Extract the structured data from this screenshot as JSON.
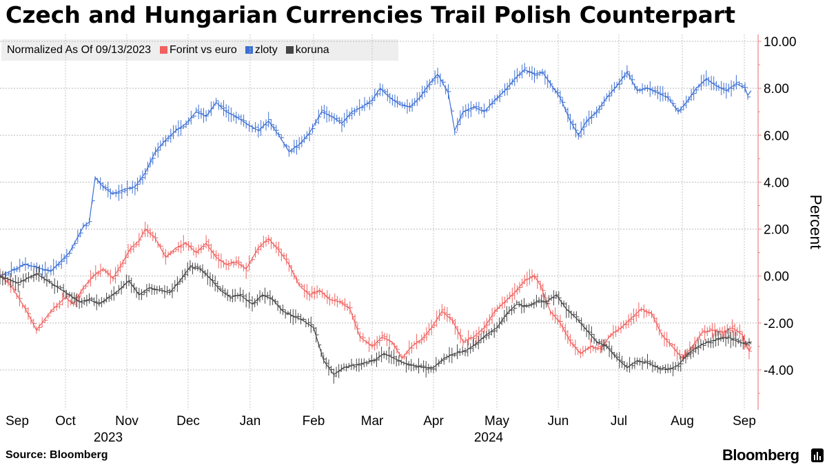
{
  "title": "Czech and Hungarian Currencies Trail Polish Counterpart",
  "legend": {
    "label": "Normalized As Of 09/13/2023",
    "items": [
      {
        "name": "Forint vs euro",
        "color": "#f0605e"
      },
      {
        "name": "zloty",
        "color": "#3c6fd4"
      },
      {
        "name": "koruna",
        "color": "#444444"
      }
    ]
  },
  "source": "Source: Bloomberg",
  "brand": "Bloomberg",
  "chart_data": {
    "type": "line",
    "ylabel": "Percent",
    "ylim": [
      -5.8,
      10.3
    ],
    "yticks": [
      10,
      8,
      6,
      4,
      2,
      0,
      -2,
      -4
    ],
    "ytick_labels": [
      "10.00",
      "8.00",
      "6.00",
      "4.00",
      "2.00",
      "0.00",
      "-2.00",
      "-4.00"
    ],
    "y_axis_position": "right",
    "grid": true,
    "x_months": [
      "Sep",
      "Oct",
      "Nov",
      "Dec",
      "Jan",
      "Feb",
      "Mar",
      "Apr",
      "May",
      "Jun",
      "Jul",
      "Aug",
      "Sep"
    ],
    "x_years": [
      "2023",
      "2024"
    ],
    "x_anchor_dates": [
      "2023-09-13",
      "2023-10-01",
      "2023-11-01",
      "2023-12-01",
      "2024-01-01",
      "2024-02-01",
      "2024-03-01",
      "2024-04-01",
      "2024-05-01",
      "2024-06-01",
      "2024-07-01",
      "2024-08-01",
      "2024-09-01",
      "2024-09-11"
    ],
    "series": [
      {
        "name": "zloty",
        "color": "#3c6fd4",
        "points": [
          [
            "2023-09-13",
            0.0
          ],
          [
            "2023-09-20",
            0.5
          ],
          [
            "2023-09-27",
            0.2
          ],
          [
            "2023-10-03",
            1.0
          ],
          [
            "2023-10-10",
            2.1
          ],
          [
            "2023-10-13",
            2.3
          ],
          [
            "2023-10-16",
            4.2
          ],
          [
            "2023-10-20",
            3.8
          ],
          [
            "2023-10-25",
            3.5
          ],
          [
            "2023-10-31",
            3.7
          ],
          [
            "2023-11-05",
            3.8
          ],
          [
            "2023-11-10",
            4.4
          ],
          [
            "2023-11-15",
            5.3
          ],
          [
            "2023-11-20",
            5.8
          ],
          [
            "2023-11-25",
            6.2
          ],
          [
            "2023-11-30",
            6.5
          ],
          [
            "2023-12-05",
            7.0
          ],
          [
            "2023-12-10",
            6.8
          ],
          [
            "2023-12-15",
            7.4
          ],
          [
            "2023-12-20",
            7.0
          ],
          [
            "2023-12-25",
            6.8
          ],
          [
            "2023-12-30",
            6.5
          ],
          [
            "2024-01-05",
            6.2
          ],
          [
            "2024-01-10",
            6.6
          ],
          [
            "2024-01-15",
            6.0
          ],
          [
            "2024-01-20",
            5.3
          ],
          [
            "2024-01-25",
            5.6
          ],
          [
            "2024-01-30",
            6.1
          ],
          [
            "2024-02-05",
            7.0
          ],
          [
            "2024-02-10",
            6.8
          ],
          [
            "2024-02-15",
            6.5
          ],
          [
            "2024-02-20",
            7.0
          ],
          [
            "2024-02-25",
            7.2
          ],
          [
            "2024-03-01",
            7.5
          ],
          [
            "2024-03-05",
            8.0
          ],
          [
            "2024-03-10",
            7.6
          ],
          [
            "2024-03-15",
            7.3
          ],
          [
            "2024-03-20",
            7.2
          ],
          [
            "2024-03-25",
            7.6
          ],
          [
            "2024-03-30",
            8.2
          ],
          [
            "2024-04-03",
            8.6
          ],
          [
            "2024-04-08",
            7.8
          ],
          [
            "2024-04-11",
            6.2
          ],
          [
            "2024-04-15",
            7.0
          ],
          [
            "2024-04-20",
            7.2
          ],
          [
            "2024-04-25",
            7.0
          ],
          [
            "2024-04-30",
            7.5
          ],
          [
            "2024-05-05",
            7.9
          ],
          [
            "2024-05-10",
            8.4
          ],
          [
            "2024-05-15",
            8.8
          ],
          [
            "2024-05-20",
            8.6
          ],
          [
            "2024-05-24",
            8.7
          ],
          [
            "2024-05-28",
            8.2
          ],
          [
            "2024-06-02",
            7.6
          ],
          [
            "2024-06-07",
            6.6
          ],
          [
            "2024-06-11",
            6.0
          ],
          [
            "2024-06-15",
            6.6
          ],
          [
            "2024-06-20",
            7.0
          ],
          [
            "2024-06-25",
            7.6
          ],
          [
            "2024-06-30",
            8.1
          ],
          [
            "2024-07-05",
            8.7
          ],
          [
            "2024-07-10",
            7.9
          ],
          [
            "2024-07-15",
            8.0
          ],
          [
            "2024-07-20",
            7.8
          ],
          [
            "2024-07-25",
            7.6
          ],
          [
            "2024-07-30",
            7.0
          ],
          [
            "2024-08-03",
            7.4
          ],
          [
            "2024-08-08",
            8.0
          ],
          [
            "2024-08-13",
            8.4
          ],
          [
            "2024-08-18",
            8.1
          ],
          [
            "2024-08-23",
            7.9
          ],
          [
            "2024-08-28",
            8.2
          ],
          [
            "2024-09-02",
            8.0
          ],
          [
            "2024-09-06",
            7.7
          ],
          [
            "2024-09-11",
            7.9
          ]
        ]
      },
      {
        "name": "Forint vs euro",
        "color": "#f0605e",
        "points": [
          [
            "2023-09-13",
            0.0
          ],
          [
            "2023-09-16",
            -0.4
          ],
          [
            "2023-09-20",
            -1.4
          ],
          [
            "2023-09-23",
            -2.3
          ],
          [
            "2023-09-27",
            -1.5
          ],
          [
            "2023-10-01",
            -0.9
          ],
          [
            "2023-10-05",
            -1.2
          ],
          [
            "2023-10-10",
            -0.5
          ],
          [
            "2023-10-15",
            0.0
          ],
          [
            "2023-10-20",
            0.3
          ],
          [
            "2023-10-25",
            -0.1
          ],
          [
            "2023-10-30",
            0.6
          ],
          [
            "2023-11-03",
            1.2
          ],
          [
            "2023-11-07",
            1.5
          ],
          [
            "2023-11-10",
            2.0
          ],
          [
            "2023-11-15",
            1.6
          ],
          [
            "2023-11-20",
            0.8
          ],
          [
            "2023-11-25",
            1.2
          ],
          [
            "2023-11-30",
            1.4
          ],
          [
            "2023-12-05",
            1.0
          ],
          [
            "2023-12-10",
            1.4
          ],
          [
            "2023-12-15",
            0.8
          ],
          [
            "2023-12-20",
            0.5
          ],
          [
            "2023-12-25",
            0.6
          ],
          [
            "2023-12-30",
            0.3
          ],
          [
            "2024-01-05",
            1.2
          ],
          [
            "2024-01-10",
            1.6
          ],
          [
            "2024-01-15",
            1.1
          ],
          [
            "2024-01-20",
            0.5
          ],
          [
            "2024-01-25",
            -0.4
          ],
          [
            "2024-01-30",
            -0.8
          ],
          [
            "2024-02-04",
            -0.6
          ],
          [
            "2024-02-09",
            -1.0
          ],
          [
            "2024-02-14",
            -1.1
          ],
          [
            "2024-02-19",
            -1.4
          ],
          [
            "2024-02-24",
            -2.6
          ],
          [
            "2024-03-01",
            -3.0
          ],
          [
            "2024-03-06",
            -2.6
          ],
          [
            "2024-03-11",
            -2.8
          ],
          [
            "2024-03-16",
            -3.5
          ],
          [
            "2024-03-21",
            -3.0
          ],
          [
            "2024-03-26",
            -2.7
          ],
          [
            "2024-03-31",
            -2.2
          ],
          [
            "2024-04-05",
            -1.5
          ],
          [
            "2024-04-10",
            -1.9
          ],
          [
            "2024-04-15",
            -2.8
          ],
          [
            "2024-04-20",
            -2.6
          ],
          [
            "2024-04-25",
            -2.2
          ],
          [
            "2024-04-30",
            -1.5
          ],
          [
            "2024-05-05",
            -1.1
          ],
          [
            "2024-05-10",
            -0.7
          ],
          [
            "2024-05-15",
            -0.2
          ],
          [
            "2024-05-20",
            0.0
          ],
          [
            "2024-05-23",
            -0.4
          ],
          [
            "2024-05-28",
            -1.5
          ],
          [
            "2024-06-02",
            -2.0
          ],
          [
            "2024-06-07",
            -2.8
          ],
          [
            "2024-06-12",
            -3.3
          ],
          [
            "2024-06-17",
            -3.0
          ],
          [
            "2024-06-22",
            -3.1
          ],
          [
            "2024-06-27",
            -2.5
          ],
          [
            "2024-07-02",
            -2.2
          ],
          [
            "2024-07-07",
            -1.8
          ],
          [
            "2024-07-12",
            -1.4
          ],
          [
            "2024-07-17",
            -1.6
          ],
          [
            "2024-07-22",
            -2.5
          ],
          [
            "2024-07-27",
            -3.0
          ],
          [
            "2024-08-01",
            -3.5
          ],
          [
            "2024-08-06",
            -3.0
          ],
          [
            "2024-08-11",
            -2.4
          ],
          [
            "2024-08-16",
            -2.3
          ],
          [
            "2024-08-21",
            -2.4
          ],
          [
            "2024-08-26",
            -2.2
          ],
          [
            "2024-08-31",
            -2.5
          ],
          [
            "2024-09-05",
            -3.0
          ],
          [
            "2024-09-08",
            -3.2
          ],
          [
            "2024-09-11",
            -3.0
          ]
        ]
      },
      {
        "name": "koruna",
        "color": "#444444",
        "points": [
          [
            "2023-09-13",
            0.0
          ],
          [
            "2023-09-18",
            -0.3
          ],
          [
            "2023-09-23",
            0.1
          ],
          [
            "2023-09-28",
            -0.4
          ],
          [
            "2023-10-03",
            -0.8
          ],
          [
            "2023-10-08",
            -1.1
          ],
          [
            "2023-10-13",
            -1.0
          ],
          [
            "2023-10-18",
            -1.2
          ],
          [
            "2023-10-23",
            -0.9
          ],
          [
            "2023-10-28",
            -0.6
          ],
          [
            "2023-11-02",
            -0.2
          ],
          [
            "2023-11-07",
            -0.8
          ],
          [
            "2023-11-12",
            -0.5
          ],
          [
            "2023-11-17",
            -0.6
          ],
          [
            "2023-11-22",
            -0.7
          ],
          [
            "2023-11-27",
            -0.2
          ],
          [
            "2023-12-02",
            0.4
          ],
          [
            "2023-12-07",
            0.3
          ],
          [
            "2023-12-12",
            -0.1
          ],
          [
            "2023-12-17",
            -0.6
          ],
          [
            "2023-12-22",
            -0.9
          ],
          [
            "2023-12-27",
            -0.8
          ],
          [
            "2024-01-02",
            -1.2
          ],
          [
            "2024-01-07",
            -0.8
          ],
          [
            "2024-01-12",
            -1.0
          ],
          [
            "2024-01-17",
            -1.5
          ],
          [
            "2024-01-22",
            -1.7
          ],
          [
            "2024-01-27",
            -1.9
          ],
          [
            "2024-02-01",
            -2.2
          ],
          [
            "2024-02-06",
            -3.6
          ],
          [
            "2024-02-11",
            -4.2
          ],
          [
            "2024-02-16",
            -3.9
          ],
          [
            "2024-02-21",
            -3.8
          ],
          [
            "2024-02-26",
            -3.7
          ],
          [
            "2024-03-02",
            -3.6
          ],
          [
            "2024-03-07",
            -3.3
          ],
          [
            "2024-03-12",
            -3.5
          ],
          [
            "2024-03-17",
            -3.7
          ],
          [
            "2024-03-22",
            -3.8
          ],
          [
            "2024-03-27",
            -3.9
          ],
          [
            "2024-04-01",
            -3.9
          ],
          [
            "2024-04-06",
            -3.5
          ],
          [
            "2024-04-11",
            -3.3
          ],
          [
            "2024-04-16",
            -3.2
          ],
          [
            "2024-04-21",
            -2.9
          ],
          [
            "2024-04-26",
            -2.5
          ],
          [
            "2024-05-01",
            -2.2
          ],
          [
            "2024-05-06",
            -1.6
          ],
          [
            "2024-05-11",
            -1.2
          ],
          [
            "2024-05-16",
            -1.3
          ],
          [
            "2024-05-21",
            -1.1
          ],
          [
            "2024-05-26",
            -1.1
          ],
          [
            "2024-05-31",
            -0.8
          ],
          [
            "2024-06-05",
            -1.4
          ],
          [
            "2024-06-10",
            -1.8
          ],
          [
            "2024-06-15",
            -2.3
          ],
          [
            "2024-06-20",
            -2.8
          ],
          [
            "2024-06-25",
            -3.0
          ],
          [
            "2024-06-30",
            -3.5
          ],
          [
            "2024-07-05",
            -3.9
          ],
          [
            "2024-07-10",
            -3.6
          ],
          [
            "2024-07-15",
            -3.7
          ],
          [
            "2024-07-20",
            -3.9
          ],
          [
            "2024-07-25",
            -4.0
          ],
          [
            "2024-07-30",
            -3.8
          ],
          [
            "2024-08-04",
            -3.3
          ],
          [
            "2024-08-09",
            -3.0
          ],
          [
            "2024-08-14",
            -2.8
          ],
          [
            "2024-08-19",
            -2.7
          ],
          [
            "2024-08-24",
            -2.6
          ],
          [
            "2024-08-29",
            -2.8
          ],
          [
            "2024-09-03",
            -2.9
          ],
          [
            "2024-09-08",
            -2.8
          ],
          [
            "2024-09-11",
            -2.9
          ]
        ]
      }
    ]
  }
}
